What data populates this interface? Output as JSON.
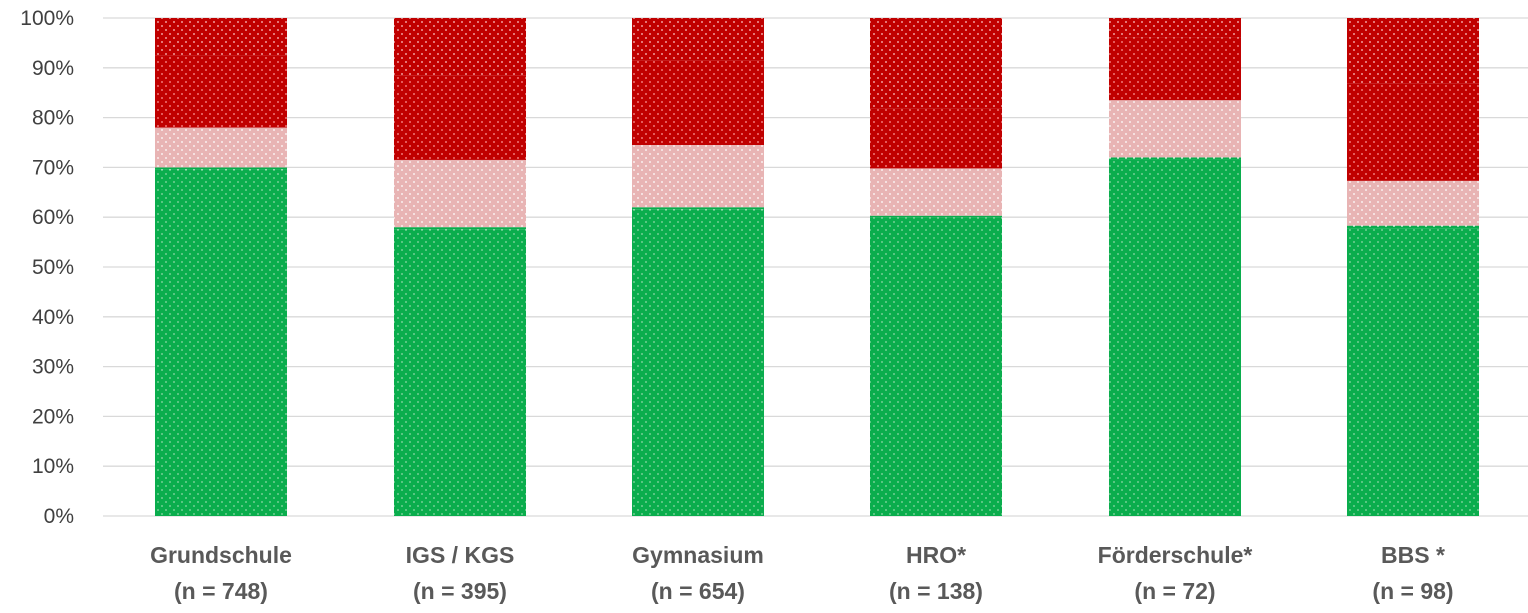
{
  "chart_data": {
    "type": "bar",
    "stacked": true,
    "percent_stacked": true,
    "categories": [
      [
        "Grundschule",
        "(n = 748)"
      ],
      [
        "IGS / KGS",
        "(n = 395)"
      ],
      [
        "Gymnasium",
        "(n = 654)"
      ],
      [
        "HRO*",
        "(n = 138)"
      ],
      [
        "Förderschule*",
        "(n = 72)"
      ],
      [
        "BBS *",
        "(n = 98)"
      ]
    ],
    "series": [
      {
        "color": "#0aad4d",
        "dot_color": "#8fd9a8",
        "values": [
          69.5,
          57.5,
          61.5,
          60.0,
          71.5,
          57.8
        ]
      },
      {
        "color": "#0aad4d",
        "dot_color": "#ffffff",
        "values": [
          0.5,
          0.5,
          0.5,
          0.3,
          0.5,
          0.5
        ]
      },
      {
        "color": "#e8b4b4",
        "dot_color": "#ffffff",
        "values": [
          8.0,
          13.5,
          12.5,
          9.5,
          11.5,
          9.0
        ]
      },
      {
        "color": "#c00000",
        "dot_color": "#ff9a9a",
        "values": [
          14.5,
          17.0,
          17.0,
          12.0,
          12.5,
          19.5
        ]
      },
      {
        "color": "#c00000",
        "dot_color": "#ffc9c9",
        "values": [
          7.5,
          11.5,
          8.5,
          18.2,
          4.0,
          13.2
        ]
      }
    ],
    "y_ticks": [
      "0%",
      "10%",
      "20%",
      "30%",
      "40%",
      "50%",
      "60%",
      "70%",
      "80%",
      "90%",
      "100%"
    ],
    "ylim": [
      0,
      100
    ],
    "grid": true,
    "legend": "none"
  }
}
